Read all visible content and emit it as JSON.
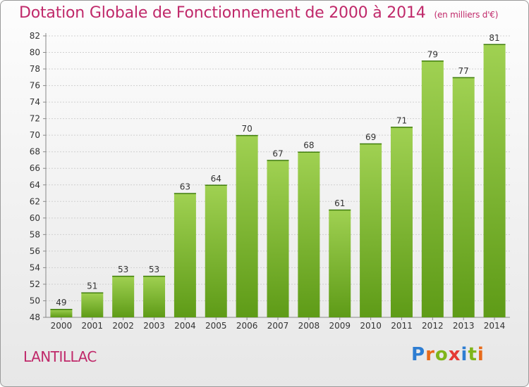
{
  "header": {
    "title": "Dotation Globale de Fonctionnement de 2000 à 2014",
    "unit": "(en milliers d'€)"
  },
  "footer": {
    "commune": "LANTILLAC",
    "brand": "Proxiti"
  },
  "colors": {
    "title": "#c0296a",
    "bar_top": "#a0d152",
    "bar_bottom": "#5e9b17",
    "grid": "#d0d0d0"
  },
  "chart_data": {
    "type": "bar",
    "title": "Dotation Globale de Fonctionnement de 2000 à 2014",
    "subtitle": "(en milliers d'€)",
    "xlabel": "",
    "ylabel": "",
    "categories": [
      "2000",
      "2001",
      "2002",
      "2003",
      "2004",
      "2005",
      "2006",
      "2007",
      "2008",
      "2009",
      "2010",
      "2011",
      "2012",
      "2013",
      "2014"
    ],
    "values": [
      49,
      51,
      53,
      53,
      63,
      64,
      70,
      67,
      68,
      61,
      69,
      71,
      79,
      77,
      81
    ],
    "ylim": [
      48,
      82
    ],
    "yticks": [
      48,
      50,
      52,
      54,
      56,
      58,
      60,
      62,
      64,
      66,
      68,
      70,
      72,
      74,
      76,
      78,
      80,
      82
    ],
    "grid": true,
    "data_labels": true
  }
}
